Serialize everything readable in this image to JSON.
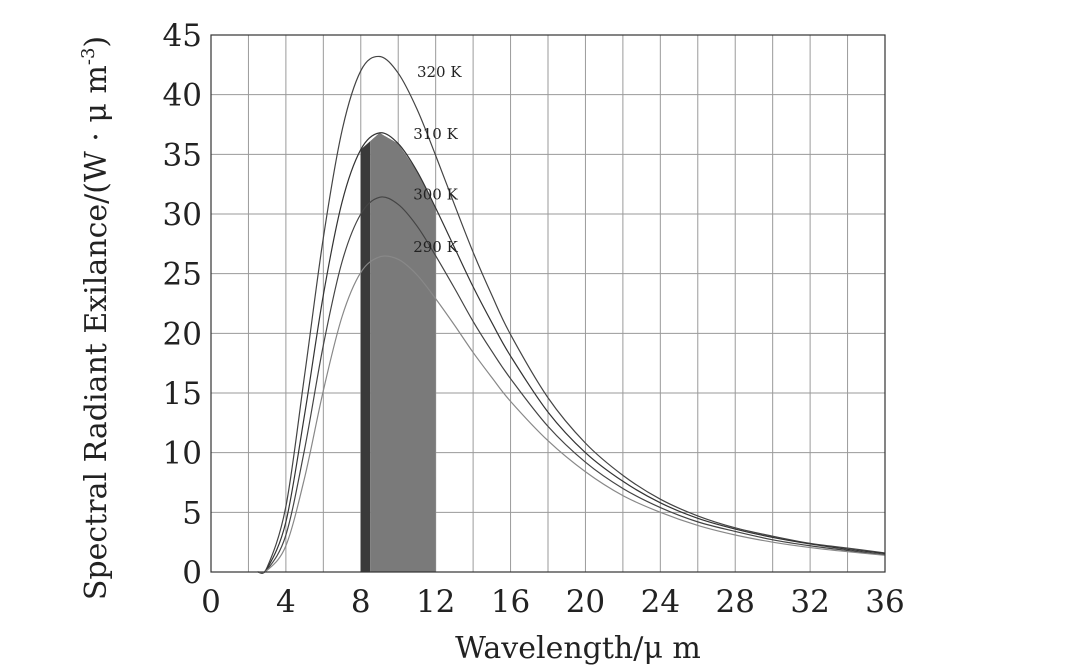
{
  "chart_data": {
    "type": "line",
    "title": "",
    "xlabel": "Wavelength/μ m",
    "ylabel": "Spectral Radiant Exilance/(W · μ m",
    "ylabel_exponent": "-3",
    "ylabel_close": ")",
    "xlim": [
      0,
      36
    ],
    "ylim": [
      0,
      45
    ],
    "xticks": [
      0,
      4,
      8,
      12,
      16,
      20,
      24,
      28,
      32,
      36
    ],
    "yticks": [
      0,
      5,
      10,
      15,
      20,
      25,
      30,
      35,
      40,
      45
    ],
    "x_minor_step": 2,
    "grid": true,
    "legend": "none",
    "band_shading": [
      {
        "x_start": 8,
        "x_end": 8.5,
        "color": "#3a3a3a",
        "curve": "310 K"
      },
      {
        "x_start": 8.5,
        "x_end": 12,
        "color": "#7a7a7a",
        "curve": "310 K"
      }
    ],
    "series": [
      {
        "name": "320 K",
        "label_at": [
          11,
          41.5
        ],
        "color": "#444444",
        "points": [
          [
            2.5,
            0
          ],
          [
            3,
            0.4
          ],
          [
            4,
            5.5
          ],
          [
            5,
            16.5
          ],
          [
            6,
            28
          ],
          [
            7,
            37
          ],
          [
            8,
            42
          ],
          [
            9,
            43.2
          ],
          [
            10,
            41.8
          ],
          [
            11,
            38.8
          ],
          [
            12,
            34.9
          ],
          [
            13,
            30.8
          ],
          [
            14,
            26.8
          ],
          [
            15,
            23.2
          ],
          [
            16,
            19.9
          ],
          [
            18,
            14.6
          ],
          [
            20,
            10.8
          ],
          [
            22,
            8.1
          ],
          [
            24,
            6.1
          ],
          [
            26,
            4.7
          ],
          [
            28,
            3.7
          ],
          [
            30,
            3.0
          ],
          [
            32,
            2.4
          ],
          [
            34,
            2.0
          ],
          [
            36,
            1.6
          ]
        ]
      },
      {
        "name": "310 K",
        "label_at": [
          10.8,
          36.3
        ],
        "color": "#333333",
        "points": [
          [
            2.5,
            0
          ],
          [
            3,
            0.3
          ],
          [
            4,
            4.2
          ],
          [
            5,
            13.2
          ],
          [
            6,
            23.2
          ],
          [
            7,
            31.0
          ],
          [
            8,
            35.4
          ],
          [
            9,
            36.8
          ],
          [
            10,
            35.9
          ],
          [
            11,
            33.6
          ],
          [
            12,
            30.5
          ],
          [
            13,
            27.2
          ],
          [
            14,
            23.9
          ],
          [
            15,
            20.9
          ],
          [
            16,
            18.1
          ],
          [
            18,
            13.4
          ],
          [
            20,
            10.0
          ],
          [
            22,
            7.6
          ],
          [
            24,
            5.8
          ],
          [
            26,
            4.5
          ],
          [
            28,
            3.6
          ],
          [
            30,
            2.9
          ],
          [
            32,
            2.35
          ],
          [
            34,
            1.9
          ],
          [
            36,
            1.55
          ]
        ]
      },
      {
        "name": "300 K",
        "label_at": [
          10.8,
          31.2
        ],
        "color": "#444444",
        "points": [
          [
            2.5,
            0
          ],
          [
            3,
            0.2
          ],
          [
            4,
            3.1
          ],
          [
            5,
            10.3
          ],
          [
            6,
            19.0
          ],
          [
            7,
            26.0
          ],
          [
            8,
            30.0
          ],
          [
            9,
            31.4
          ],
          [
            10,
            30.8
          ],
          [
            11,
            29.0
          ],
          [
            12,
            26.5
          ],
          [
            13,
            23.8
          ],
          [
            14,
            21.0
          ],
          [
            15,
            18.5
          ],
          [
            16,
            16.2
          ],
          [
            18,
            12.2
          ],
          [
            20,
            9.2
          ],
          [
            22,
            7.0
          ],
          [
            24,
            5.4
          ],
          [
            26,
            4.2
          ],
          [
            28,
            3.4
          ],
          [
            30,
            2.7
          ],
          [
            32,
            2.2
          ],
          [
            34,
            1.8
          ],
          [
            36,
            1.45
          ]
        ]
      },
      {
        "name": "290 K",
        "label_at": [
          10.8,
          26.8
        ],
        "color": "#888888",
        "points": [
          [
            2.5,
            0
          ],
          [
            3,
            0.15
          ],
          [
            4,
            2.2
          ],
          [
            5,
            7.9
          ],
          [
            6,
            15.2
          ],
          [
            7,
            21.4
          ],
          [
            8,
            25.1
          ],
          [
            9,
            26.4
          ],
          [
            10,
            26.2
          ],
          [
            11,
            24.9
          ],
          [
            12,
            22.9
          ],
          [
            13,
            20.7
          ],
          [
            14,
            18.4
          ],
          [
            15,
            16.3
          ],
          [
            16,
            14.3
          ],
          [
            18,
            11.0
          ],
          [
            20,
            8.4
          ],
          [
            22,
            6.4
          ],
          [
            24,
            5.0
          ],
          [
            26,
            3.9
          ],
          [
            28,
            3.1
          ],
          [
            30,
            2.5
          ],
          [
            32,
            2.05
          ],
          [
            34,
            1.7
          ],
          [
            36,
            1.4
          ]
        ]
      }
    ]
  }
}
